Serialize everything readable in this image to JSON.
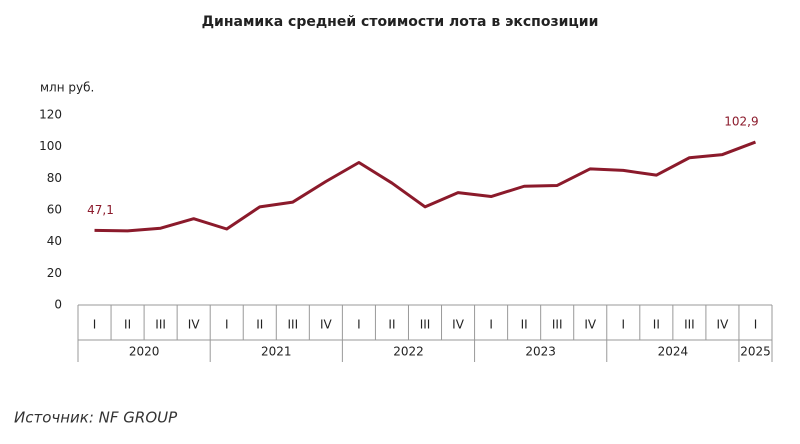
{
  "chart_data": {
    "type": "line",
    "title": "Динамика средней стоимости лота в экспозиции",
    "y_axis_label": "млн руб.",
    "source": "Источник: NF GROUP",
    "category_groups": [
      {
        "label": "2020",
        "categories": [
          "I",
          "II",
          "III",
          "IV"
        ]
      },
      {
        "label": "2021",
        "categories": [
          "I",
          "II",
          "III",
          "IV"
        ]
      },
      {
        "label": "2022",
        "categories": [
          "I",
          "II",
          "III",
          "IV"
        ]
      },
      {
        "label": "2023",
        "categories": [
          "I",
          "II",
          "III",
          "IV"
        ]
      },
      {
        "label": "2024",
        "categories": [
          "I",
          "II",
          "III",
          "IV"
        ]
      },
      {
        "label": "2025",
        "categories": [
          "I"
        ]
      }
    ],
    "series": [
      {
        "color": "#8b1a2b",
        "values": [
          47.1,
          46.8,
          48.5,
          54.5,
          48,
          62,
          65,
          78,
          90,
          77,
          62,
          71,
          68.5,
          75,
          75.5,
          86,
          85,
          82,
          93,
          95,
          102.9
        ],
        "value_labels": [
          "47,1",
          null,
          null,
          null,
          null,
          null,
          null,
          null,
          null,
          null,
          null,
          null,
          null,
          null,
          null,
          null,
          null,
          null,
          null,
          null,
          "102,9"
        ]
      }
    ],
    "ylim": [
      0,
      120
    ],
    "yticks": [
      0,
      20,
      40,
      60,
      80,
      100,
      120
    ]
  }
}
